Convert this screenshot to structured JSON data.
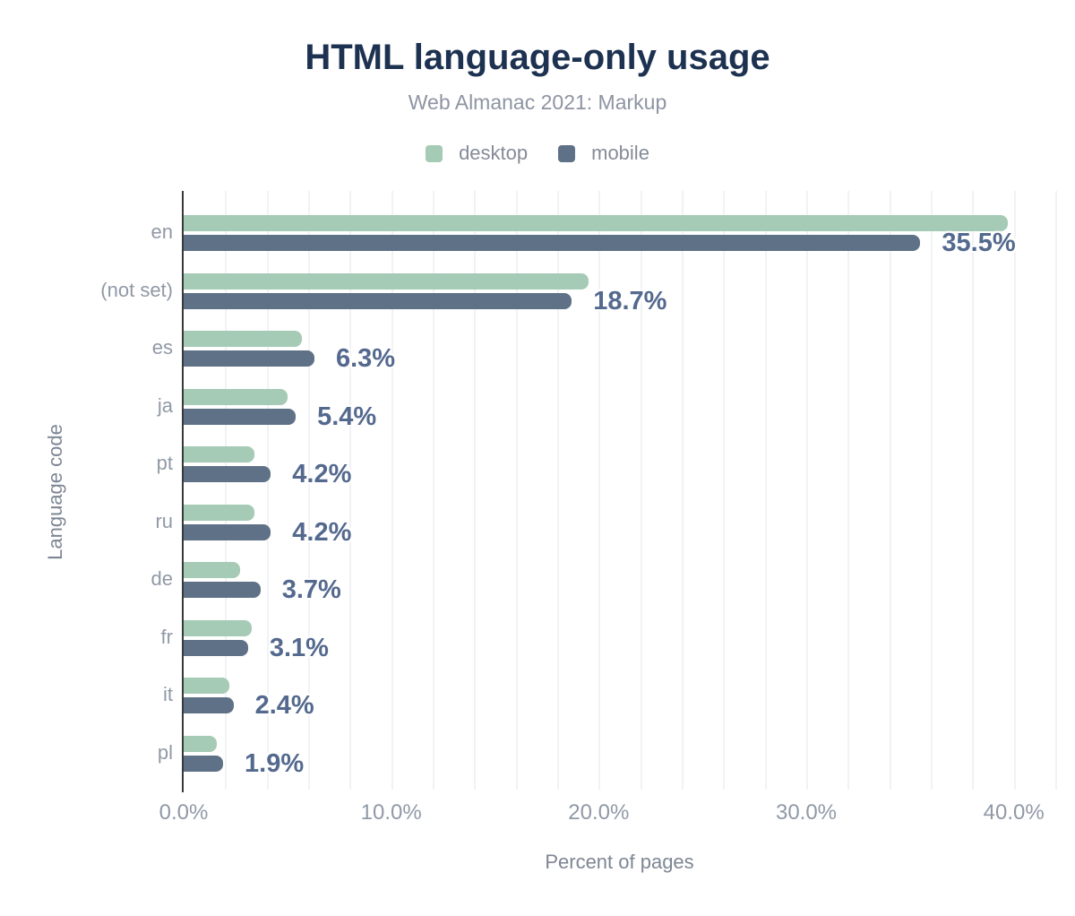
{
  "chart_data": {
    "type": "bar",
    "orientation": "horizontal",
    "title": "HTML language-only usage",
    "subtitle": "Web Almanac 2021: Markup",
    "xlabel": "Percent of pages",
    "ylabel": "Language code",
    "categories": [
      "en",
      "(not set)",
      "es",
      "ja",
      "pt",
      "ru",
      "de",
      "fr",
      "it",
      "pl"
    ],
    "series": [
      {
        "name": "desktop",
        "color": "#a5cab5",
        "values": [
          39.7,
          19.5,
          5.7,
          5.0,
          3.4,
          3.4,
          2.7,
          3.3,
          2.2,
          1.6
        ]
      },
      {
        "name": "mobile",
        "color": "#5e7186",
        "values": [
          35.5,
          18.7,
          6.3,
          5.4,
          4.2,
          4.2,
          3.7,
          3.1,
          2.4,
          1.9
        ]
      }
    ],
    "value_labels": [
      "35.5%",
      "18.7%",
      "6.3%",
      "5.4%",
      "4.2%",
      "4.2%",
      "3.7%",
      "3.1%",
      "2.4%",
      "1.9%"
    ],
    "x_ticks": [
      "0.0%",
      "10.0%",
      "20.0%",
      "30.0%",
      "40.0%"
    ],
    "x_tick_values": [
      0,
      10,
      20,
      30,
      40
    ],
    "xlim": [
      0,
      42
    ],
    "grid_step_percent": 2,
    "grid": "vertical-minor",
    "legend_position": "top",
    "value_label_series": "mobile"
  },
  "colors": {
    "desktop_bar": "#a5cab5",
    "mobile_bar": "#5e7186",
    "value_label": "#54698e",
    "title": "#1d3150",
    "muted_text": "#9099a6",
    "axis_title_text": "#7d8694",
    "legend_text": "#848b98",
    "axis_line": "#37383a",
    "gridline": "#f1f2f4",
    "background": "#ffffff"
  }
}
